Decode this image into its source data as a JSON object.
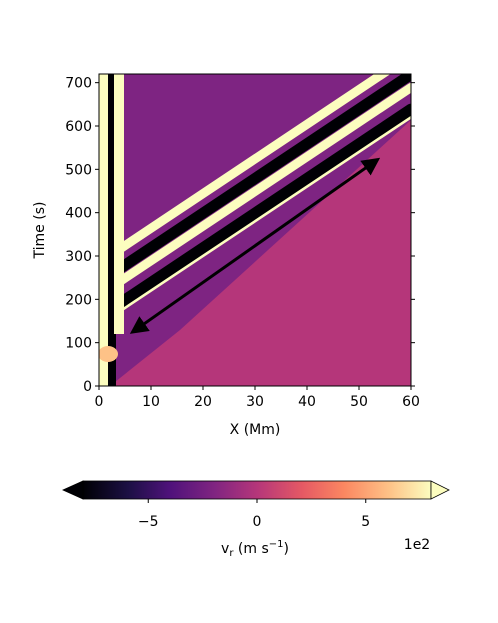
{
  "chart_data": {
    "type": "heatmap",
    "colormap": "magma",
    "xlabel": "X (Mm)",
    "ylabel": "Time (s)",
    "xlim": [
      0,
      60
    ],
    "ylim": [
      0,
      720
    ],
    "x_ticks": [
      "0",
      "10",
      "20",
      "30",
      "40",
      "50",
      "60"
    ],
    "y_ticks": [
      "0",
      "100",
      "200",
      "300",
      "400",
      "500",
      "600",
      "700"
    ],
    "background_value": 0,
    "ridges": [
      {
        "start_time": 225,
        "speed_mm_per_s": 0.125,
        "sign": "positive"
      },
      {
        "start_time": 300,
        "speed_mm_per_s": 0.125,
        "sign": "positive"
      },
      {
        "start_time": 165,
        "speed_mm_per_s": 0.125,
        "sign": "positive"
      },
      {
        "start_time": 175,
        "speed_mm_per_s": 0.125,
        "sign": "negative"
      },
      {
        "start_time": 255,
        "speed_mm_per_s": 0.125,
        "sign": "negative"
      }
    ],
    "arrow": {
      "from": [
        6.5,
        125
      ],
      "to": [
        53.5,
        522
      ],
      "style": "double-headed"
    },
    "colorbar": {
      "label": "v",
      "label_sub": "r",
      "label_units": " (m s",
      "label_exp": "−1",
      "label_close": ")",
      "ticks": [
        "−5",
        "0",
        "5"
      ],
      "tick_values": [
        -5,
        0,
        5
      ],
      "range": [
        -8,
        8
      ],
      "extend": "both",
      "offset_text": "1e2"
    }
  }
}
